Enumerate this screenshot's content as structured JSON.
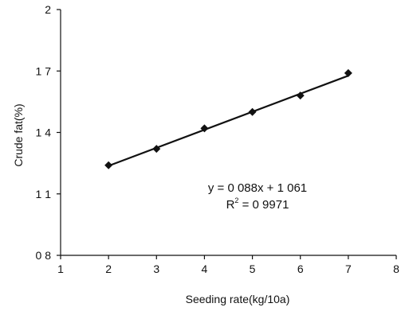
{
  "chart_data": {
    "type": "scatter",
    "title": "",
    "xlabel": "Seeding rate(kg/10a)",
    "ylabel": "Crude fat(%)",
    "xlim": [
      1,
      8
    ],
    "ylim": [
      0.8,
      2.0
    ],
    "x_ticks": [
      1,
      2,
      3,
      4,
      5,
      6,
      7,
      8
    ],
    "x_tick_labels": [
      "1",
      "2",
      "3",
      "4",
      "5",
      "6",
      "7",
      "8"
    ],
    "y_ticks": [
      0.8,
      1.1,
      1.4,
      1.7,
      2.0
    ],
    "y_tick_labels": [
      "0 8",
      "1 1",
      "1 4",
      "1 7",
      "2"
    ],
    "grid": false,
    "legend": "none",
    "series": [
      {
        "x": [
          2,
          3,
          4,
          5,
          6,
          7
        ],
        "y": [
          1.24,
          1.32,
          1.42,
          1.5,
          1.58,
          1.69
        ],
        "marker": "diamond",
        "color": "#111111"
      }
    ],
    "trendline": {
      "type": "linear",
      "slope": 0.088,
      "intercept": 1.061,
      "x_range": [
        2,
        7
      ],
      "color": "#111111"
    },
    "annotations": {
      "equation": "y = 0 088x + 1 061",
      "r2_prefix": "R",
      "r2_sup": "2",
      "r2_suffix": " = 0 9971"
    }
  }
}
